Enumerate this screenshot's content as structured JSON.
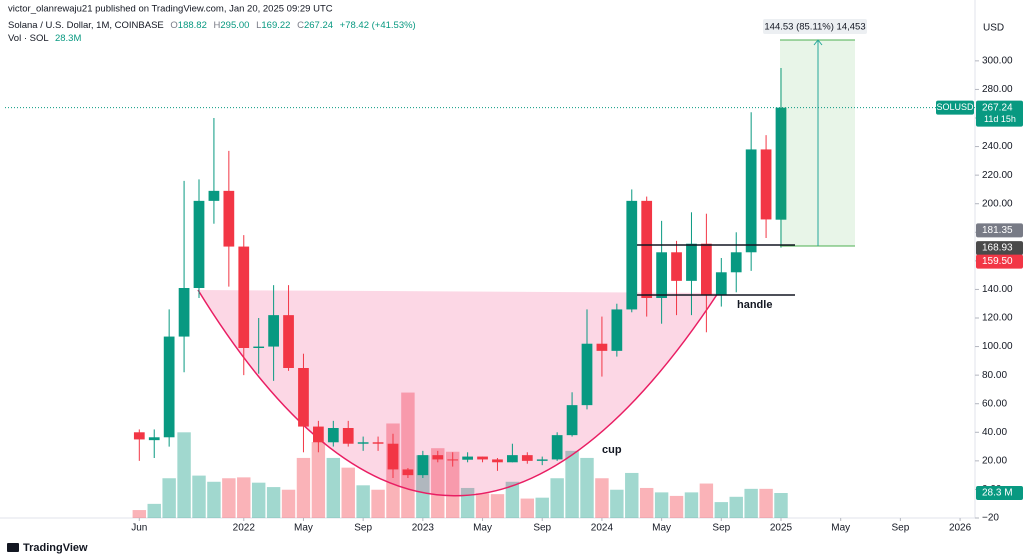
{
  "header": {
    "published": "victor_olanrewaju21 published on TradingView.com, Jan 20, 2025 09:29 UTC",
    "symbol": "Solana / U.S. Dollar, 1M, COINBASE",
    "quote": [
      {
        "label": "O",
        "value": "188.82"
      },
      {
        "label": "H",
        "value": "295.00"
      },
      {
        "label": "L",
        "value": "169.22"
      },
      {
        "label": "C",
        "value": "267.24"
      }
    ],
    "change": "+78.42 (+41.53%)",
    "volume_label": "Vol · SOL",
    "volume_value": "28.3M"
  },
  "chart_data": {
    "type": "candlestick",
    "currency": "USD",
    "x": [
      "2021-06",
      "2021-07",
      "2021-08",
      "2021-09",
      "2021-10",
      "2021-11",
      "2021-12",
      "2022-01",
      "2022-02",
      "2022-03",
      "2022-04",
      "2022-05",
      "2022-06",
      "2022-07",
      "2022-08",
      "2022-09",
      "2022-10",
      "2022-11",
      "2022-12",
      "2023-01",
      "2023-02",
      "2023-03",
      "2023-04",
      "2023-05",
      "2023-06",
      "2023-07",
      "2023-08",
      "2023-09",
      "2023-10",
      "2023-11",
      "2023-12",
      "2024-01",
      "2024-02",
      "2024-03",
      "2024-04",
      "2024-05",
      "2024-06",
      "2024-07",
      "2024-08",
      "2024-09",
      "2024-10",
      "2024-11",
      "2024-12",
      "2025-01"
    ],
    "open": [
      40,
      34.5,
      36.5,
      107,
      141,
      202,
      209,
      170,
      99,
      100,
      122,
      85,
      44,
      33,
      43,
      32,
      33,
      32,
      14,
      10,
      24,
      21,
      20.8,
      23,
      21,
      19,
      24,
      20,
      21,
      38,
      59,
      102,
      97,
      126,
      202,
      134,
      166,
      146,
      172,
      136,
      152,
      166,
      238,
      188.82
    ],
    "high": [
      42,
      42,
      126,
      216,
      217,
      260,
      237,
      178,
      120,
      143,
      143,
      95,
      48,
      48,
      48,
      37,
      37,
      39,
      15,
      27,
      27,
      26,
      26,
      23,
      22,
      32,
      26,
      23,
      40,
      68,
      126,
      121,
      130,
      210,
      205,
      188,
      174,
      194,
      193,
      162,
      180,
      264,
      248,
      295
    ],
    "low": [
      20,
      22,
      30,
      82,
      134,
      186,
      142,
      80,
      81,
      76,
      83,
      26,
      26,
      30,
      30,
      27,
      27,
      8,
      8,
      8,
      19,
      16,
      19,
      19,
      13,
      19,
      18,
      17,
      20,
      37,
      56,
      79,
      93,
      124,
      121,
      116,
      122,
      122,
      110,
      128,
      138,
      153,
      176,
      169.22
    ],
    "close": [
      35,
      36.5,
      107,
      141,
      202,
      209,
      170,
      99,
      100,
      122,
      85,
      44,
      33,
      43,
      32,
      33,
      32,
      14,
      10,
      24,
      21,
      20.8,
      23,
      21,
      19,
      24,
      20,
      21,
      38,
      59,
      102,
      97,
      126,
      202,
      134,
      166,
      146,
      172,
      136,
      152,
      166,
      238,
      189,
      267.24
    ],
    "volume": [
      9,
      16,
      45,
      97,
      48,
      41,
      45,
      46,
      40,
      35,
      32,
      68,
      86,
      68,
      57,
      37,
      32,
      107,
      142,
      71,
      79,
      75,
      34,
      28,
      27,
      41,
      22,
      23,
      45,
      76,
      68,
      45,
      32,
      51,
      34,
      29,
      25,
      29,
      39,
      18,
      24,
      33,
      33,
      28.3
    ],
    "volume_last_label": "28.3 M",
    "up_color": "#089981",
    "down_color": "#f23645",
    "volume_up_color": "rgba(8,153,129,0.38)",
    "volume_down_color": "rgba(242,54,69,0.38)",
    "xlim": [
      "2020-09",
      "2026-02"
    ],
    "ylim": [
      -20,
      330
    ],
    "vlim": [
      0,
      566
    ],
    "xticks": [
      {
        "value": "2021-06",
        "label": "Jun"
      },
      {
        "value": "2022-01",
        "label": "2022"
      },
      {
        "value": "2022-05",
        "label": "May"
      },
      {
        "value": "2022-09",
        "label": "Sep"
      },
      {
        "value": "2023-01",
        "label": "2023"
      },
      {
        "value": "2023-05",
        "label": "May"
      },
      {
        "value": "2023-09",
        "label": "Sep"
      },
      {
        "value": "2024-01",
        "label": "2024"
      },
      {
        "value": "2024-05",
        "label": "May"
      },
      {
        "value": "2024-09",
        "label": "Sep"
      },
      {
        "value": "2025-01",
        "label": "2025"
      },
      {
        "value": "2025-05",
        "label": "May"
      },
      {
        "value": "2025-09",
        "label": "Sep"
      },
      {
        "value": "2026-01",
        "label": "2026"
      }
    ],
    "yticks": [
      {
        "value": -20,
        "label": "−20"
      },
      {
        "value": 0,
        "label": "0.00"
      },
      {
        "value": 20,
        "label": "20.00"
      },
      {
        "value": 40,
        "label": "40.00"
      },
      {
        "value": 60,
        "label": "60.00"
      },
      {
        "value": 80,
        "label": "80.00"
      },
      {
        "value": 100,
        "label": "100.00"
      },
      {
        "value": 120,
        "label": "120.00"
      },
      {
        "value": 140,
        "label": "140.00"
      },
      {
        "value": 160,
        "label": "160.00"
      },
      {
        "value": 180,
        "label": "180.00"
      },
      {
        "value": 200,
        "label": "200.00"
      },
      {
        "value": 220,
        "label": "220.00"
      },
      {
        "value": 240,
        "label": "240.00"
      },
      {
        "value": 260,
        "label": "260.00"
      },
      {
        "value": 280,
        "label": "280.00"
      },
      {
        "value": 300,
        "label": "300.00"
      }
    ],
    "price_badges": [
      {
        "value": 267.24,
        "label": "267.24",
        "color": "#089981"
      },
      {
        "value": 181.35,
        "label": "181.35",
        "color": "#787b86"
      },
      {
        "value": 168.93,
        "label": "168.93",
        "color": "#4a4a4a"
      },
      {
        "value": 159.5,
        "label": "159.50",
        "color": "#f23645"
      }
    ],
    "symbol_badge": "SOLUSD",
    "countdown": "11d 15h",
    "annotations": {
      "cup": "cup",
      "handle": "handle",
      "measure": "144.53 (85.11%) 14,453"
    },
    "grid": false
  },
  "footer": "TradingView"
}
